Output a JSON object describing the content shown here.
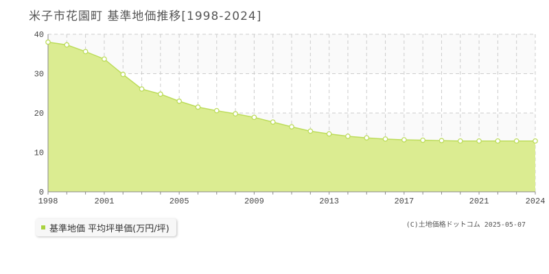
{
  "header": {
    "title": "米子市花園町 基準地価推移[1998-2024]"
  },
  "legend": {
    "label": "基準地価 平均坪単価(万円/坪)"
  },
  "credit": "(C)土地価格ドットコム 2025-05-07",
  "colors": {
    "area_fill": "#dbec91",
    "line": "#bcdc5a",
    "marker_fill": "#ffffff",
    "legend_marker": "#a9d23f"
  },
  "chart_data": {
    "type": "area",
    "title": "米子市花園町 基準地価推移[1998-2024]",
    "xlabel": "",
    "ylabel": "",
    "xlim": [
      1998,
      2024
    ],
    "ylim": [
      0,
      40
    ],
    "yticks": [
      0,
      10,
      20,
      30,
      40
    ],
    "xticks": [
      1998,
      2001,
      2005,
      2009,
      2013,
      2017,
      2021,
      2024
    ],
    "grid": true,
    "legend_position": "bottom-left",
    "series": [
      {
        "name": "基準地価 平均坪単価(万円/坪)",
        "x": [
          1998,
          1999,
          2000,
          2001,
          2002,
          2003,
          2004,
          2005,
          2006,
          2007,
          2008,
          2009,
          2010,
          2011,
          2012,
          2013,
          2014,
          2015,
          2016,
          2017,
          2018,
          2019,
          2020,
          2021,
          2022,
          2023,
          2024
        ],
        "values": [
          38.0,
          37.3,
          35.6,
          33.7,
          29.8,
          26.1,
          24.8,
          23.0,
          21.5,
          20.6,
          19.8,
          18.9,
          17.7,
          16.5,
          15.4,
          14.7,
          14.1,
          13.7,
          13.4,
          13.2,
          13.1,
          13.0,
          12.9,
          12.9,
          12.9,
          12.9,
          12.9
        ]
      }
    ]
  }
}
